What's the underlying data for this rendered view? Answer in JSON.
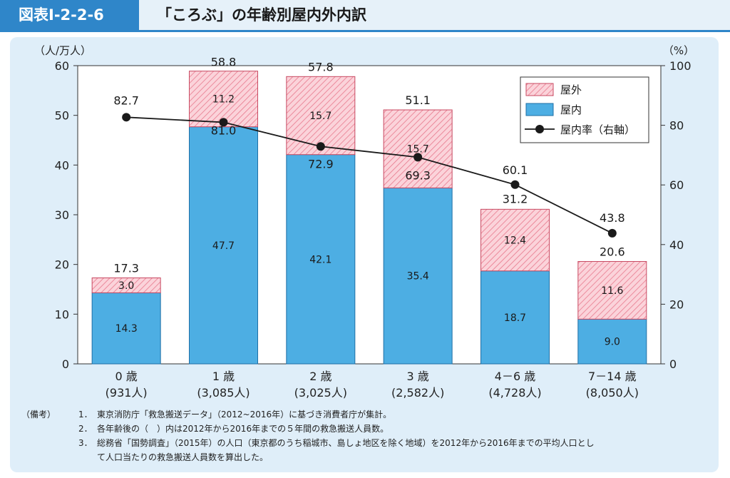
{
  "header": {
    "figure_label": "図表Ⅰ-2-2-6",
    "title": "「ころぶ」の年齢別屋内外内訳"
  },
  "chart_data": {
    "type": "bar",
    "stacked": true,
    "categories": [
      "0 歳",
      "1 歳",
      "2 歳",
      "3 歳",
      "4－6 歳",
      "7－14 歳"
    ],
    "category_sublabels": [
      "(931人)",
      "(3,085人)",
      "(3,025人)",
      "(2,582人)",
      "(4,728人)",
      "(8,050人)"
    ],
    "left_axis": {
      "unit": "（人/万人）",
      "ylim": [
        0,
        60
      ],
      "ticks": [
        "0",
        "10",
        "20",
        "30",
        "40",
        "50",
        "60"
      ]
    },
    "right_axis": {
      "unit": "（%）",
      "ylim": [
        0,
        100
      ],
      "ticks": [
        "0",
        "20",
        "40",
        "60",
        "80",
        "100"
      ]
    },
    "series": [
      {
        "name": "屋内",
        "values": [
          14.3,
          47.7,
          42.1,
          35.4,
          18.7,
          9.0
        ],
        "labels": [
          "14.3",
          "47.7",
          "42.1",
          "35.4",
          "18.7",
          "9.0"
        ],
        "color": "#4daee3"
      },
      {
        "name": "屋外",
        "values": [
          3.0,
          11.2,
          15.7,
          15.7,
          12.4,
          11.6
        ],
        "labels": [
          "3.0",
          "11.2",
          "15.7",
          "15.7",
          "12.4",
          "11.6"
        ],
        "color": "#f6b7c2"
      }
    ],
    "totals": [
      17.3,
      58.8,
      57.8,
      51.1,
      31.2,
      20.6
    ],
    "total_labels": [
      "17.3",
      "58.8",
      "57.8",
      "51.1",
      "31.2",
      "20.6"
    ],
    "line": {
      "name": "屋内率（右軸）",
      "values": [
        82.7,
        81.0,
        72.9,
        69.3,
        60.1,
        43.8
      ],
      "labels": [
        "82.7",
        "81.0",
        "72.9",
        "69.3",
        "60.1",
        "43.8"
      ],
      "color": "#1a1a1a"
    },
    "legend": {
      "placement": "top-right",
      "items": [
        "屋外",
        "屋内",
        "屋内率（右軸）"
      ]
    },
    "grid": false
  },
  "notes": {
    "tag": "（備考）",
    "items": [
      {
        "num": "1．",
        "text": "東京消防庁「救急搬送データ」（2012~2016年）に基づき消費者庁が集計。"
      },
      {
        "num": "2．",
        "text": "各年齢後の（　）内は2012年から2016年までの５年間の救急搬送人員数。"
      },
      {
        "num": "3．",
        "text": "総務省「国勢調査」（2015年）の人口（東京都のうち稲城市、島しょ地区を除く地域）を2012年から2016年までの平均人口とし",
        "cont": "て人口当たりの救急搬送人員数を算出した。"
      }
    ]
  }
}
